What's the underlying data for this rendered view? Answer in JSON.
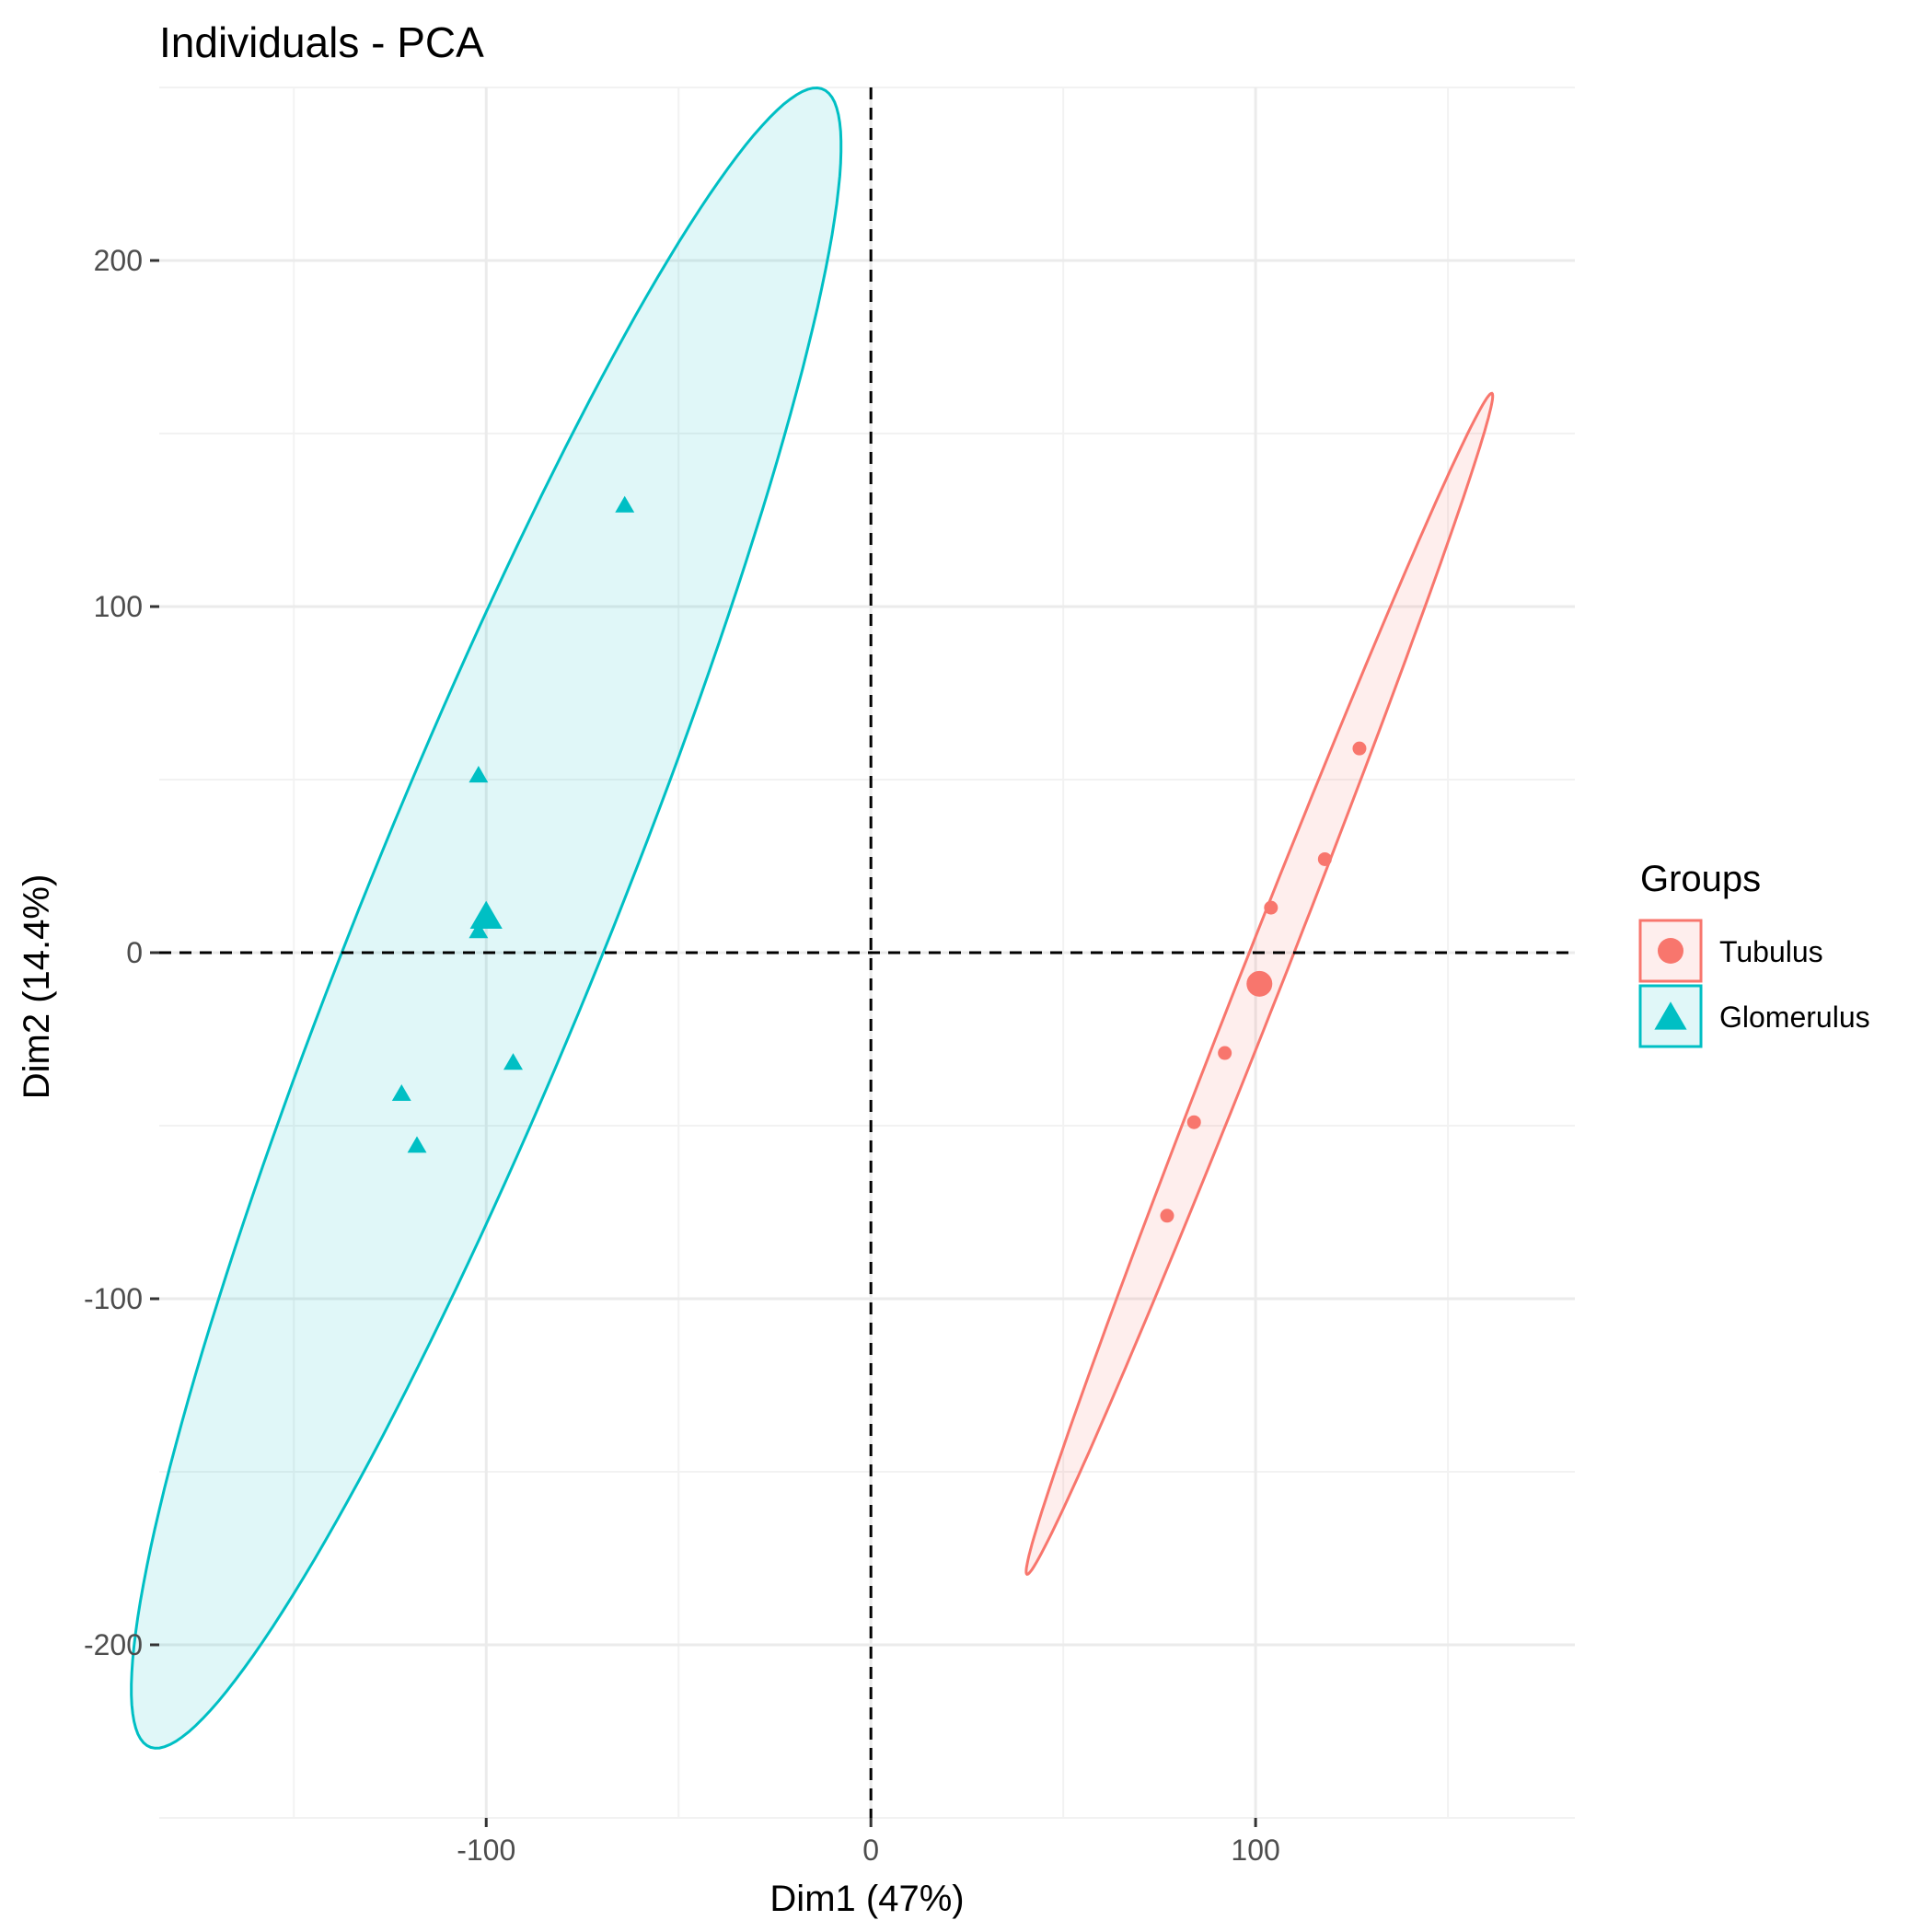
{
  "chart_data": {
    "type": "scatter",
    "title": "Individuals - PCA",
    "xlabel": "Dim1 (47%)",
    "ylabel": "Dim2 (14.4%)",
    "xlim": [
      -185,
      183
    ],
    "ylim": [
      -250,
      250
    ],
    "x_ticks": [
      -100,
      0,
      100
    ],
    "x_tick_labels": [
      "-100",
      "0",
      "100"
    ],
    "y_ticks": [
      -200,
      -100,
      0,
      100,
      200
    ],
    "y_tick_labels": [
      "-200",
      "-100",
      "0",
      "100",
      "200"
    ],
    "x_minor_grid": [
      -150,
      -50,
      50,
      150
    ],
    "y_minor_grid": [
      -250,
      -150,
      -50,
      50,
      150,
      250
    ],
    "grid": true,
    "reference_lines": {
      "x": 0,
      "y": 0,
      "style": "dashed"
    },
    "legend": {
      "title": "Groups",
      "position": "right",
      "items": [
        {
          "label": "Tubulus",
          "shape": "circle",
          "color": "#F8766D"
        },
        {
          "label": "Glomerulus",
          "shape": "triangle",
          "color": "#00BFC4"
        }
      ]
    },
    "series": [
      {
        "name": "Tubulus",
        "color": "#F8766D",
        "shape": "circle",
        "points": [
          {
            "x": 127,
            "y": 59
          },
          {
            "x": 118,
            "y": 27
          },
          {
            "x": 104,
            "y": 13
          },
          {
            "x": 92,
            "y": -29
          },
          {
            "x": 84,
            "y": -49
          },
          {
            "x": 77,
            "y": -76
          }
        ],
        "centroid": {
          "x": 101,
          "y": -9
        },
        "ellipse": {
          "center": {
            "x": 101,
            "y": -9
          },
          "semi_major": 181,
          "semi_minor": 5.5,
          "angle_deg": 70.5
        }
      },
      {
        "name": "Glomerulus",
        "color": "#00BFC4",
        "shape": "triangle",
        "points": [
          {
            "x": -64,
            "y": 129
          },
          {
            "x": -102,
            "y": 51
          },
          {
            "x": -102,
            "y": 6
          },
          {
            "x": -93,
            "y": -32
          },
          {
            "x": -122,
            "y": -41
          },
          {
            "x": -118,
            "y": -56
          }
        ],
        "centroid": {
          "x": -100,
          "y": 10
        },
        "ellipse": {
          "center": {
            "x": -100,
            "y": 10
          },
          "semi_major": 255,
          "semi_minor": 32,
          "angle_deg": 70
        }
      }
    ]
  }
}
